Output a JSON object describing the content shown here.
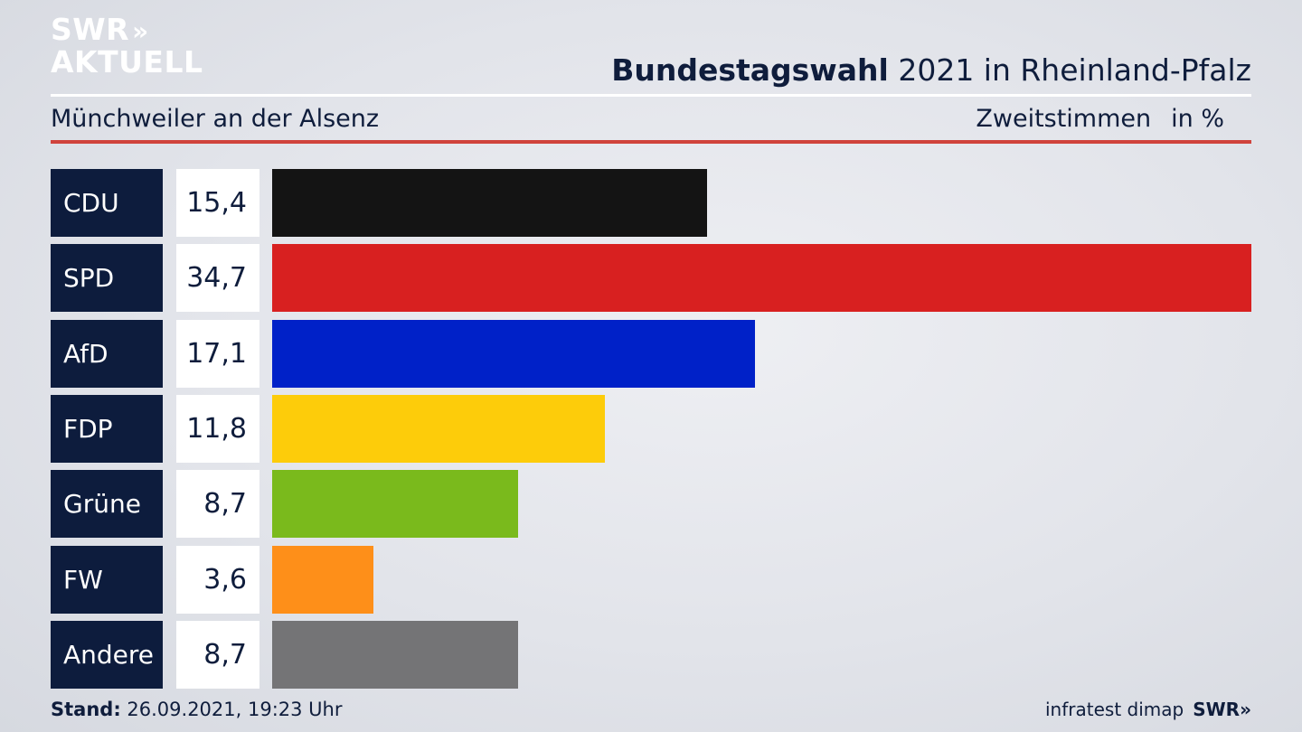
{
  "logo": {
    "line1": "SWR",
    "chevrons": "»",
    "line2": "AKTUELL"
  },
  "header": {
    "title_bold": "Bundestagswahl",
    "title_rest": " 2021 in Rheinland-Pfalz"
  },
  "subheader": {
    "location": "Münchweiler an der Alsenz",
    "measure": "Zweitstimmen",
    "unit": "in %"
  },
  "chart_data": {
    "type": "bar",
    "orientation": "horizontal",
    "title": "Bundestagswahl 2021 in Rheinland-Pfalz",
    "subtitle": "Münchweiler an der Alsenz",
    "categories": [
      "CDU",
      "SPD",
      "AfD",
      "FDP",
      "Grüne",
      "FW",
      "Andere"
    ],
    "values": [
      15.4,
      34.7,
      17.1,
      11.8,
      8.7,
      3.6,
      8.7
    ],
    "value_labels": [
      "15,4",
      "34,7",
      "17,1",
      "11,8",
      "8,7",
      "3,6",
      "8,7"
    ],
    "colors": [
      "#141414",
      "#d82020",
      "#0021c8",
      "#fdcc0a",
      "#7aba1c",
      "#fe8f19",
      "#747476"
    ],
    "xlim": [
      0,
      34.7
    ],
    "grid": false,
    "legend": "none"
  },
  "footer": {
    "stand_label": "Stand:",
    "stand_value": " 26.09.2021, 19:23 Uhr",
    "source": "infratest dimap",
    "brand": "SWR"
  }
}
